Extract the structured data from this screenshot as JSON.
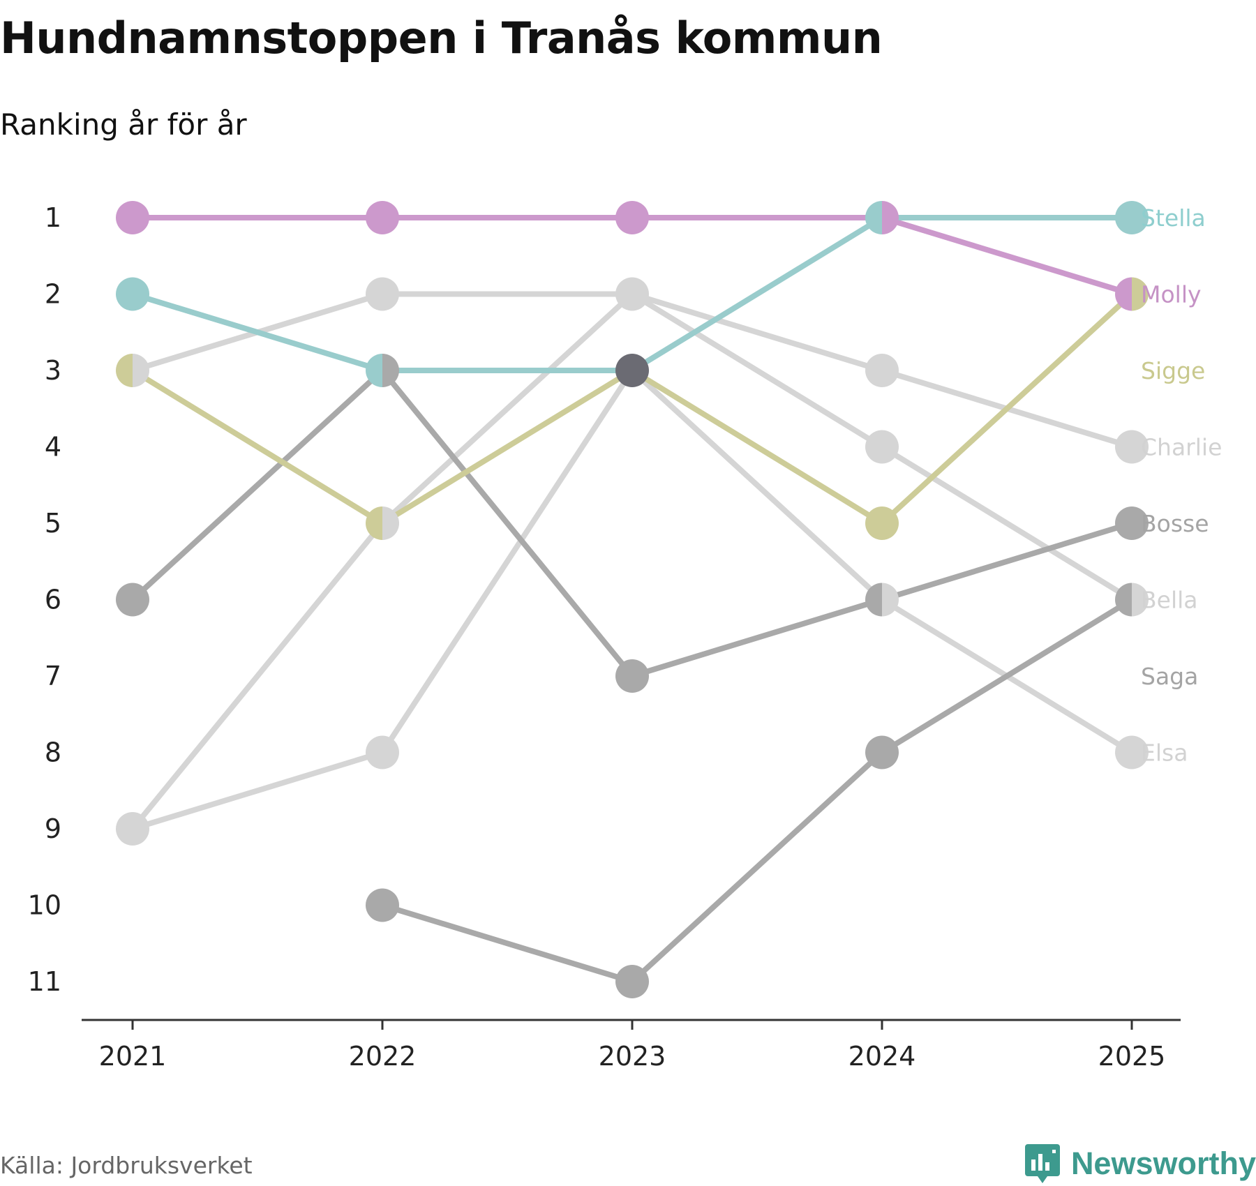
{
  "chart_data": {
    "type": "line",
    "title": "Hundnamnstoppen i Tranås kommun",
    "subtitle": "Ranking år för år",
    "x": [
      2021,
      2022,
      2023,
      2024,
      2025
    ],
    "x_tick_labels": [
      "2021",
      "2022",
      "2023",
      "2024",
      "2025"
    ],
    "y_tick_labels": [
      "1",
      "2",
      "3",
      "4",
      "5",
      "6",
      "7",
      "8",
      "9",
      "10",
      "11"
    ],
    "ylim": [
      1,
      11
    ],
    "y_inverted": true,
    "source": "Källa: Jordbruksverket",
    "brand": "Newsworthy",
    "series": [
      {
        "name": "Elsa",
        "label": "Elsa",
        "color": "#d5d5d5",
        "values": [
          9,
          8,
          3,
          6,
          8
        ]
      },
      {
        "name": "Bella",
        "label": "Bella",
        "color": "#d5d5d5",
        "values": [
          3,
          2,
          2,
          4,
          6
        ]
      },
      {
        "name": "Charlie",
        "label": "Charlie",
        "color": "#d5d5d5",
        "values": [
          9,
          5,
          2,
          3,
          4
        ]
      },
      {
        "name": "Saga",
        "label": "Saga",
        "color": "#a9a9a9",
        "values": [
          null,
          10,
          11,
          8,
          6
        ]
      },
      {
        "name": "Bosse",
        "label": "Bosse",
        "color": "#a9a9a9",
        "values": [
          6,
          3,
          7,
          6,
          5
        ]
      },
      {
        "name": "Sigge",
        "label": "Sigge",
        "color": "#cdcc98",
        "values": [
          3,
          5,
          3,
          5,
          2
        ]
      },
      {
        "name": "Molly",
        "label": "Molly",
        "color": "#cc99cc",
        "values": [
          1,
          1,
          1,
          1,
          2
        ]
      },
      {
        "name": "Stella",
        "label": "Stella",
        "color": "#99cccc",
        "values": [
          2,
          3,
          3,
          1,
          1
        ]
      }
    ],
    "label_ranks": {
      "Stella": 1,
      "Molly": 2,
      "Sigge": 3,
      "Charlie": 4,
      "Bosse": 5,
      "Bella": 6,
      "Saga": 7,
      "Elsa": 8
    },
    "label_colors": {
      "Stella": "#8ecece",
      "Molly": "#c592c5",
      "Sigge": "#c9c98e",
      "Charlie": "#d2d2d2",
      "Bosse": "#a4a4a4",
      "Bella": "#d2d2d2",
      "Saga": "#a4a4a4",
      "Elsa": "#d2d2d2"
    },
    "marker_overlap_color": "#6b6b73",
    "axis_color": "#333333"
  }
}
